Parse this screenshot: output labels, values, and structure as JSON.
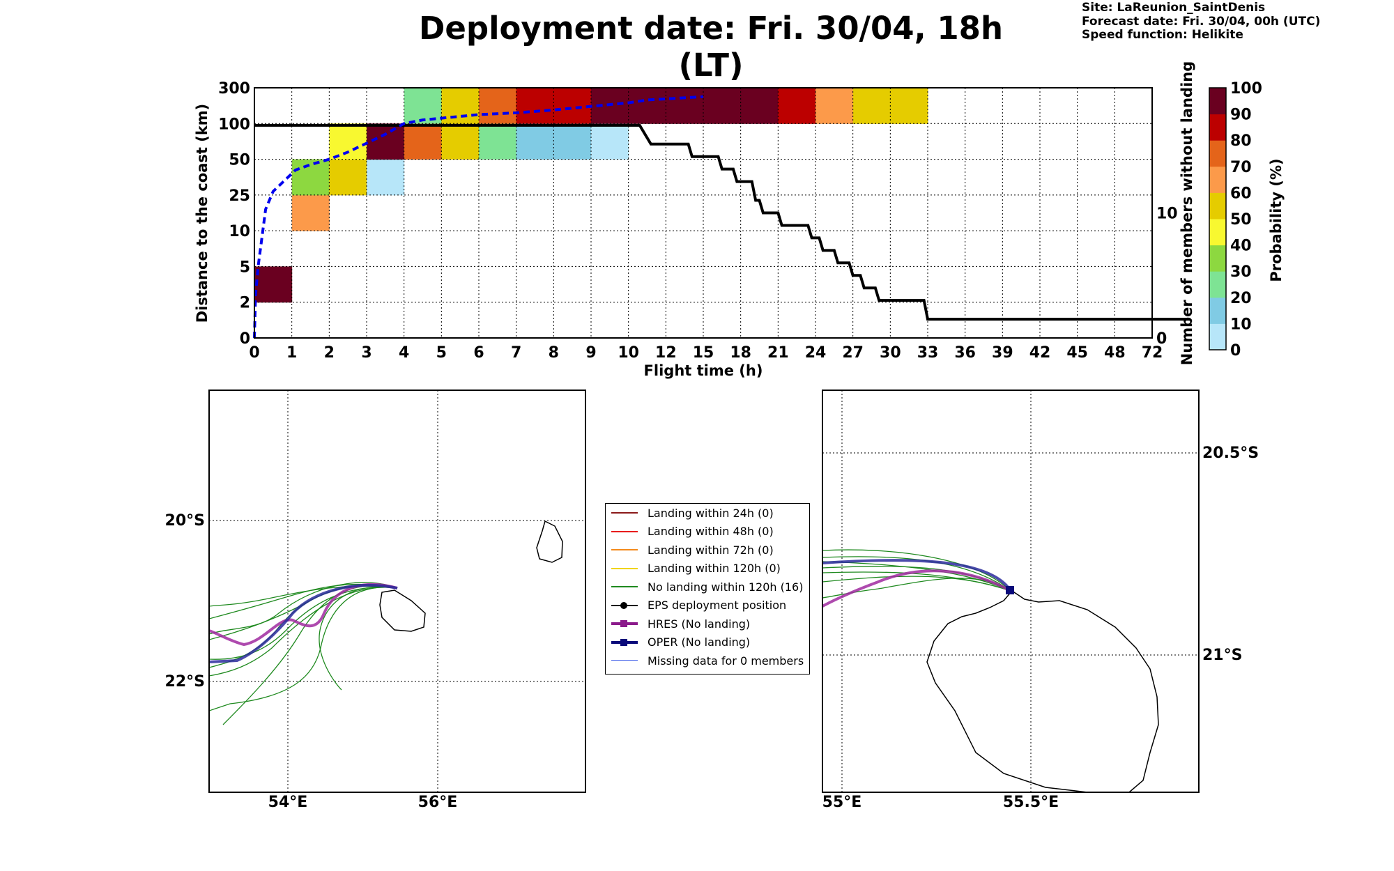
{
  "title": "Deployment date: Fri. 30/04, 18h (LT)",
  "info": {
    "site": "Site: LaReunion_SaintDenis",
    "forecast": "Forecast date: Fri. 30/04, 00h (UTC)",
    "speed": "Speed function: Helikite"
  },
  "chart_data": {
    "type": "heatmap",
    "xlabel": "Flight time (h)",
    "ylabel": "Distance to the coast (km)",
    "y2label": "Number of members without landing",
    "colorbar_label": "Probability (%)",
    "x_ticks": [
      "0",
      "1",
      "2",
      "3",
      "4",
      "5",
      "6",
      "7",
      "8",
      "9",
      "10",
      "12",
      "15",
      "18",
      "21",
      "24",
      "27",
      "30",
      "33",
      "36",
      "39",
      "42",
      "45",
      "48",
      "72"
    ],
    "y_ticks": [
      "0",
      "2",
      "5",
      "10",
      "25",
      "50",
      "100",
      "300"
    ],
    "y2_ticks": [
      "0",
      "10"
    ],
    "y2lim": [
      0,
      20
    ],
    "colorbar_ticks": [
      "0",
      "10",
      "20",
      "30",
      "40",
      "50",
      "60",
      "70",
      "80",
      "90",
      "100"
    ],
    "colorbar_colors": [
      "#b7e6f9",
      "#80cbe4",
      "#7ee394",
      "#8dd840",
      "#f8f830",
      "#e5cc00",
      "#fc9a4a",
      "#e4641a",
      "#bc0000",
      "#6a0020"
    ],
    "grid": true,
    "cells": [
      {
        "x": 0,
        "y": 1,
        "p": 95
      },
      {
        "x": 1,
        "y": 3,
        "p": 65
      },
      {
        "x": 1,
        "y": 4,
        "p": 35
      },
      {
        "x": 2,
        "y": 4,
        "p": 55
      },
      {
        "x": 2,
        "y": 5,
        "p": 45
      },
      {
        "x": 3,
        "y": 4,
        "p": 5
      },
      {
        "x": 3,
        "y": 5,
        "p": 95
      },
      {
        "x": 4,
        "y": 5,
        "p": 75
      },
      {
        "x": 4,
        "y": 6,
        "p": 25
      },
      {
        "x": 5,
        "y": 5,
        "p": 55
      },
      {
        "x": 5,
        "y": 6,
        "p": 55
      },
      {
        "x": 6,
        "y": 5,
        "p": 25
      },
      {
        "x": 6,
        "y": 6,
        "p": 75
      },
      {
        "x": 7,
        "y": 5,
        "p": 15
      },
      {
        "x": 7,
        "y": 6,
        "p": 85
      },
      {
        "x": 8,
        "y": 5,
        "p": 15
      },
      {
        "x": 8,
        "y": 6,
        "p": 85
      },
      {
        "x": 9,
        "y": 5,
        "p": 5
      },
      {
        "x": 9,
        "y": 6,
        "p": 95
      },
      {
        "x": 10,
        "y": 6,
        "p": 95
      },
      {
        "x": 11,
        "y": 6,
        "p": 95
      },
      {
        "x": 12,
        "y": 6,
        "p": 95
      },
      {
        "x": 13,
        "y": 6,
        "p": 95
      },
      {
        "x": 14,
        "y": 6,
        "p": 85
      },
      {
        "x": 15,
        "y": 6,
        "p": 65
      },
      {
        "x": 16,
        "y": 6,
        "p": 55
      },
      {
        "x": 17,
        "y": 6,
        "p": 55
      }
    ],
    "members_without_landing": [
      [
        0,
        17
      ],
      [
        10.3,
        17
      ],
      [
        10.6,
        15.5
      ],
      [
        11.6,
        15.5
      ],
      [
        11.7,
        14.5
      ],
      [
        12.4,
        14.5
      ],
      [
        12.5,
        13.5
      ],
      [
        12.8,
        13.5
      ],
      [
        12.9,
        12.5
      ],
      [
        13.3,
        12.5
      ],
      [
        13.4,
        11
      ],
      [
        13.5,
        11
      ],
      [
        13.6,
        10
      ],
      [
        14.0,
        10
      ],
      [
        14.1,
        9
      ],
      [
        14.8,
        9
      ],
      [
        14.9,
        8
      ],
      [
        15.1,
        8
      ],
      [
        15.2,
        7
      ],
      [
        15.5,
        7
      ],
      [
        15.6,
        6
      ],
      [
        15.9,
        6
      ],
      [
        16.0,
        5
      ],
      [
        16.2,
        5
      ],
      [
        16.3,
        4
      ],
      [
        16.6,
        4
      ],
      [
        16.7,
        3
      ],
      [
        17.9,
        3
      ],
      [
        18.0,
        1.5
      ],
      [
        25,
        1.5
      ]
    ],
    "distance_curve_dashed": [
      [
        0,
        0
      ],
      [
        0.03,
        1.2
      ],
      [
        0.1,
        2.0
      ],
      [
        0.2,
        2.8
      ],
      [
        0.3,
        3.6
      ],
      [
        0.5,
        4.1
      ],
      [
        0.8,
        4.4
      ],
      [
        1.1,
        4.7
      ],
      [
        1.5,
        4.85
      ],
      [
        2.0,
        5.0
      ],
      [
        2.5,
        5.2
      ],
      [
        3.0,
        5.45
      ],
      [
        3.5,
        5.7
      ],
      [
        4.0,
        6.0
      ],
      [
        4.5,
        6.1
      ],
      [
        5.0,
        6.15
      ],
      [
        5.5,
        6.2
      ],
      [
        6.0,
        6.25
      ],
      [
        7.0,
        6.3
      ],
      [
        8.0,
        6.38
      ],
      [
        9.0,
        6.48
      ],
      [
        10.0,
        6.58
      ],
      [
        10.5,
        6.66
      ],
      [
        12.0,
        6.75
      ]
    ],
    "maps": [
      {
        "name": "wide",
        "x_ticks": [
          "54°E",
          "56°E"
        ],
        "y_ticks": [
          "20°S",
          "22°S"
        ]
      },
      {
        "name": "zoom",
        "x_ticks": [
          "55°E",
          "55.5°E"
        ],
        "y_ticks": [
          "20.5°S",
          "21°S"
        ]
      }
    ]
  },
  "legend": [
    {
      "label": "Landing within 24h (0)",
      "color": "#8b1a1a",
      "kind": "line"
    },
    {
      "label": "Landing within 48h (0)",
      "color": "#e81c1c",
      "kind": "line"
    },
    {
      "label": "Landing within 72h (0)",
      "color": "#f48a1c",
      "kind": "line"
    },
    {
      "label": "Landing within 120h (0)",
      "color": "#f0d41c",
      "kind": "line"
    },
    {
      "label": "No landing within 120h (16)",
      "color": "#1f8a1f",
      "kind": "line"
    },
    {
      "label": "EPS deployment position",
      "color": "#000000",
      "kind": "dot"
    },
    {
      "label": "HRES (No landing)",
      "color": "#8b1a8b",
      "kind": "square"
    },
    {
      "label": "OPER (No landing)",
      "color": "#0a0a7a",
      "kind": "square"
    },
    {
      "label": "Missing data for 0 members",
      "color": "#3a5ae8",
      "kind": "thin"
    }
  ]
}
